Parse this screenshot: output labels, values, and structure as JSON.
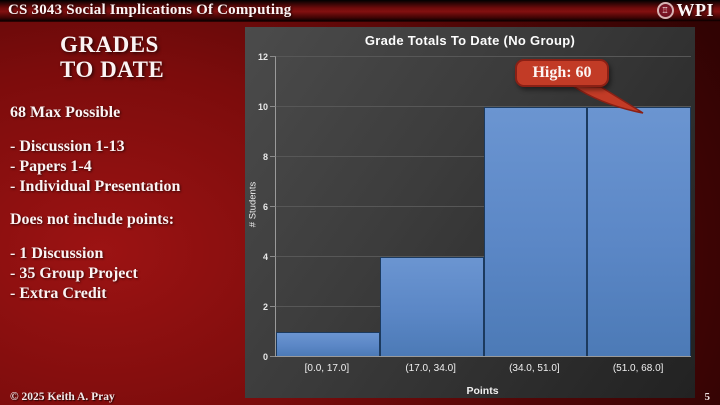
{
  "header": {
    "title": "CS 3043 Social Implications Of Computing",
    "logo_text": "WPI"
  },
  "left_panel": {
    "heading": "GRADES\nTO DATE",
    "subheading": "68 Max Possible",
    "included": [
      "- Discussion 1-13",
      "- Papers 1-4",
      "- Individual Presentation"
    ],
    "excluded_intro": "Does not include points:",
    "excluded": [
      "- 1 Discussion",
      "- 35 Group Project",
      "- Extra Credit"
    ]
  },
  "chart_data": {
    "type": "bar",
    "title": "Grade Totals To Date (No Group)",
    "categories": [
      "[0.0, 17.0]",
      "(17.0, 34.0]",
      "(34.0, 51.0]",
      "(51.0, 68.0]"
    ],
    "values": [
      1,
      4,
      10,
      10
    ],
    "xlabel": "Points",
    "ylabel": "# Students",
    "ylim": [
      0,
      12
    ],
    "ytick_step": 2,
    "grid": true,
    "legend": false,
    "annotation": {
      "text": "High: 60",
      "target_category": "(51.0, 68.0]"
    },
    "bar_color": "#5b87c6",
    "callout_color": "#c23b26",
    "panel_color": "#3c3c3c"
  },
  "footer": {
    "copyright": "© 2025 Keith A. Pray",
    "page_number": "5"
  }
}
